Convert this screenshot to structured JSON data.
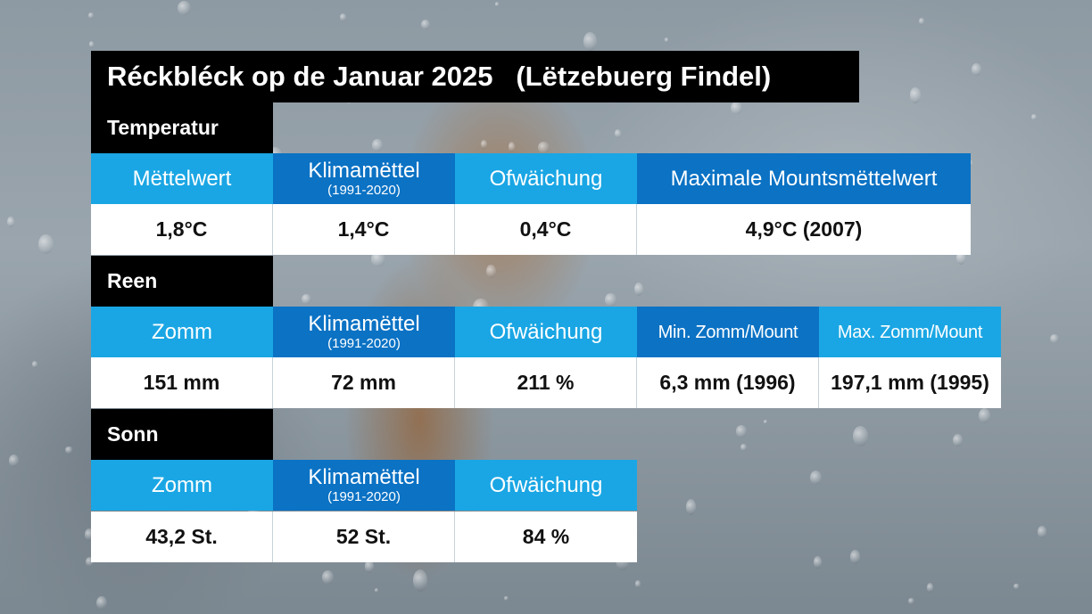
{
  "title": "Réckbléck op de Januar 2025   (Lëtzebuerg Findel)",
  "temperature": {
    "section_label": "Temperatur",
    "headers": {
      "mean": "Mëttelwert",
      "climate": "Klimamëttel",
      "climate_period": "(1991-2020)",
      "deviation": "Ofwäichung",
      "max_monthly_mean": "Maximale Mountsmëttelwert"
    },
    "values": {
      "mean": "1,8°C",
      "climate": "1,4°C",
      "deviation": "0,4°C",
      "max_monthly_mean": "4,9°C (2007)"
    }
  },
  "rain": {
    "section_label": "Reen",
    "headers": {
      "sum": "Zomm",
      "climate": "Klimamëttel",
      "climate_period": "(1991-2020)",
      "deviation": "Ofwäichung",
      "min_sum": "Min. Zomm/Mount",
      "max_sum": "Max. Zomm/Mount"
    },
    "values": {
      "sum": "151 mm",
      "climate": "72 mm",
      "deviation": "211 %",
      "min_sum": "6,3 mm (1996)",
      "max_sum": "197,1 mm (1995)"
    }
  },
  "sun": {
    "section_label": "Sonn",
    "headers": {
      "sum": "Zomm",
      "climate": "Klimamëttel",
      "climate_period": "(1991-2020)",
      "deviation": "Ofwäichung"
    },
    "values": {
      "sum": "43,2 St.",
      "climate": "52 St.",
      "deviation": "84 %"
    }
  },
  "colors": {
    "header_light": "#1aa6e4",
    "header_dark": "#0b72c4",
    "label_background": "#000000",
    "value_background": "#ffffff"
  }
}
